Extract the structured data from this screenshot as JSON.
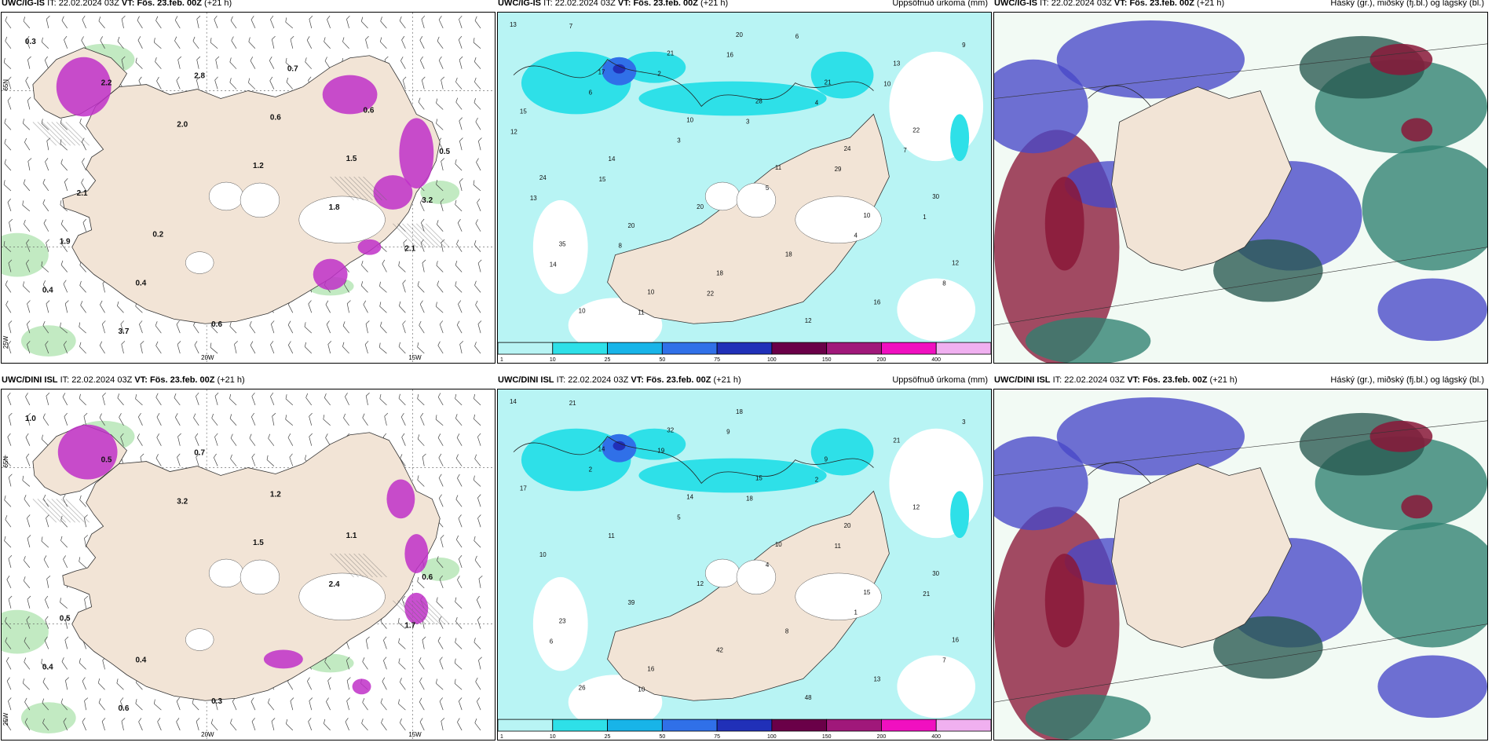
{
  "rows": [
    {
      "panels": [
        {
          "model": "UWC/IG-IS",
          "it_label": "IT:",
          "it_value": "22.02.2024 03Z",
          "vt_label": "VT:",
          "vt_value": "Fös. 23.feb. 00Z",
          "lead": "(+21 h)",
          "right_title": "",
          "kind": "wind"
        },
        {
          "model": "UWC/IG-IS",
          "it_label": "IT:",
          "it_value": "22.02.2024 03Z",
          "vt_label": "VT:",
          "vt_value": "Fös. 23.feb. 00Z",
          "lead": "(+21 h)",
          "right_title": "Uppsöfnuð úrkoma (mm)",
          "kind": "precip"
        },
        {
          "model": "UWC/IG-IS",
          "it_label": "IT:",
          "it_value": "22.02.2024 03Z",
          "vt_label": "VT:",
          "vt_value": "Fös. 23.feb. 00Z",
          "lead": "(+21 h)",
          "right_title": "Háský (gr.), miðský (fj.bl.) og lágský (bl.)",
          "kind": "cloud"
        }
      ]
    },
    {
      "panels": [
        {
          "model": "UWC/DINI ISL",
          "it_label": "IT:",
          "it_value": "22.02.2024 03Z",
          "vt_label": "VT:",
          "vt_value": "Fös. 23.feb. 00Z",
          "lead": "(+21 h)",
          "right_title": "",
          "kind": "wind"
        },
        {
          "model": "UWC/DINI ISL",
          "it_label": "IT:",
          "it_value": "22.02.2024 03Z",
          "vt_label": "VT:",
          "vt_value": "Fös. 23.feb. 00Z",
          "lead": "(+21 h)",
          "right_title": "Uppsöfnuð úrkoma (mm)",
          "kind": "precip"
        },
        {
          "model": "UWC/DINI ISL",
          "it_label": "IT:",
          "it_value": "22.02.2024 03Z",
          "vt_label": "VT:",
          "vt_value": "Fös. 23.feb. 00Z",
          "lead": "(+21 h)",
          "right_title": "Háský (gr.), miðský (fj.bl.) og lágský (bl.)",
          "kind": "cloud"
        }
      ]
    }
  ],
  "axis_labels": {
    "lon_20w": "20W",
    "lon_15w": "15W",
    "lat_65n": "65N",
    "lat_25w": "25W"
  },
  "colorbar": {
    "ticks": [
      "1",
      "10",
      "25",
      "50",
      "75",
      "100",
      "150",
      "200",
      "400"
    ],
    "colors": [
      "#b8f4f4",
      "#2ee0e8",
      "#18b4e8",
      "#3070e8",
      "#2030b8",
      "#6a0048",
      "#a0187a",
      "#f010c0",
      "#f0b0f0"
    ]
  },
  "precip_values_top": [
    "13",
    "17",
    "10",
    "11",
    "10",
    "12",
    "10",
    "21",
    "28",
    "24",
    "30",
    "35",
    "10",
    "20",
    "21",
    "22",
    "24",
    "20",
    "18",
    "12",
    "13",
    "15",
    "14",
    "20",
    "18",
    "16",
    "9",
    "6",
    "3",
    "5",
    "4",
    "8",
    "7",
    "2",
    "3",
    "29",
    "1",
    "14",
    "11",
    "16",
    "4",
    "7",
    "13",
    "8",
    "22",
    "6",
    "10",
    "12",
    "15"
  ],
  "precip_values_bottom": [
    "14",
    "14",
    "14",
    "10",
    "15",
    "16",
    "26",
    "32",
    "15",
    "20",
    "30",
    "23",
    "16",
    "18",
    "9",
    "12",
    "10",
    "39",
    "42",
    "48",
    "21",
    "17",
    "11",
    "12",
    "8",
    "13",
    "3",
    "2",
    "5",
    "4",
    "1",
    "7",
    "21",
    "19",
    "18",
    "11",
    "21",
    "6",
    "10",
    "9",
    "2"
  ],
  "wind_values_top": [
    "0.3",
    "2.2",
    "2.0",
    "1.2",
    "1.8",
    "2.1",
    "0.4",
    "3.7",
    "2.8",
    "0.6",
    "1.5",
    "3.2",
    "1.9",
    "0.4",
    "0.6",
    "0.7",
    "0.6",
    "0.5",
    "2.1",
    "0.2"
  ],
  "wind_values_bottom": [
    "1.0",
    "0.5",
    "3.2",
    "1.5",
    "2.4",
    "1.7",
    "0.4",
    "0.6",
    "0.7",
    "1.2",
    "1.1",
    "0.6",
    "0.5",
    "0.4",
    "0.3"
  ],
  "colors": {
    "land": "#f2e4d6",
    "sea_precip": "#b8f4f4",
    "magenta": "#c030c8",
    "green": "#90d890",
    "cloud_blue": "#4848c8",
    "cloud_teal": "#2e8070",
    "cloud_dark": "#285850",
    "cloud_red": "#8a1838"
  }
}
